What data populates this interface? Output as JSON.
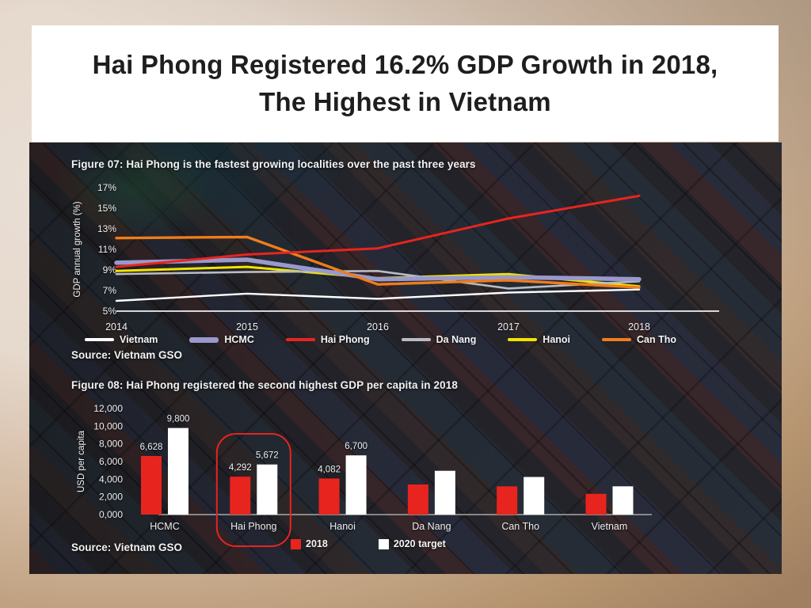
{
  "slide": {
    "title_line1": "Hai Phong Registered 16.2% GDP Growth in 2018,",
    "title_line2": "The Highest in Vietnam"
  },
  "accent_colors": {
    "highlight_red": "#e8241f",
    "text_on_photo": "#f2f2f2",
    "title_text": "#1e1e1e"
  },
  "chart_data": [
    {
      "type": "line",
      "title": "Figure 07: Hai Phong is the fastest growing localities over the past three years",
      "ylabel": "GDP annual growth (%)",
      "x": [
        "2014",
        "2015",
        "2016",
        "2017",
        "2018"
      ],
      "ytick_labels": [
        "17%",
        "15%",
        "13%",
        "11%",
        "9%",
        "7%",
        "5%"
      ],
      "ytick_values": [
        17,
        15,
        13,
        11,
        9,
        7,
        5
      ],
      "ylim": [
        5,
        17
      ],
      "grid": "baseline-only",
      "legend_position": "bottom",
      "source": "Source: Vietnam GSO",
      "series": [
        {
          "name": "Vietnam",
          "color": "#ffffff",
          "stroke_width": 2.4,
          "values": [
            6.0,
            6.7,
            6.2,
            6.8,
            7.1
          ]
        },
        {
          "name": "HCMC",
          "color": "#9a99cc",
          "stroke_width": 5.5,
          "values": [
            9.7,
            10.0,
            8.1,
            8.3,
            8.1
          ]
        },
        {
          "name": "Hai Phong",
          "color": "#e8241f",
          "stroke_width": 3.0,
          "values": [
            9.3,
            10.5,
            11.1,
            14.0,
            16.2
          ]
        },
        {
          "name": "Da Nang",
          "color": "#b9bcc2",
          "stroke_width": 2.6,
          "values": [
            8.6,
            8.8,
            8.9,
            7.2,
            7.9
          ]
        },
        {
          "name": "Hanoi",
          "color": "#f0e400",
          "stroke_width": 3.0,
          "values": [
            8.9,
            9.3,
            8.2,
            8.6,
            7.4
          ]
        },
        {
          "name": "Can Tho",
          "color": "#ef7d1a",
          "stroke_width": 3.4,
          "values": [
            12.1,
            12.2,
            7.6,
            8.0,
            7.3
          ]
        }
      ]
    },
    {
      "type": "bar",
      "title": "Figure 08: Hai Phong registered the second highest GDP per capita in 2018",
      "ylabel": "USD per capita",
      "categories": [
        "HCMC",
        "Hai Phong",
        "Hanoi",
        "Da Nang",
        "Can Tho",
        "Vietnam"
      ],
      "ytick_labels": [
        "12,000",
        "10,000",
        "8,000",
        "6,000",
        "4,000",
        "2,000",
        "0,000"
      ],
      "ytick_values": [
        12000,
        10000,
        8000,
        6000,
        4000,
        2000,
        0
      ],
      "ylim": [
        0,
        12000
      ],
      "legend_position": "bottom",
      "source": "Source: Vietnam GSO",
      "highlight": {
        "category": "Hai Phong",
        "color": "#e8241f"
      },
      "series": [
        {
          "name": "2018",
          "color": "#e8241f",
          "values": [
            6628,
            4292,
            4082,
            3400,
            3200,
            2350
          ],
          "labels": [
            "6,628",
            "4,292",
            "4,082",
            "",
            "",
            ""
          ]
        },
        {
          "name": "2020 target",
          "color": "#ffffff",
          "values": [
            9800,
            5672,
            6700,
            4950,
            4250,
            3200
          ],
          "labels": [
            "9,800",
            "5,672",
            "6,700",
            "",
            "",
            ""
          ]
        }
      ]
    }
  ]
}
